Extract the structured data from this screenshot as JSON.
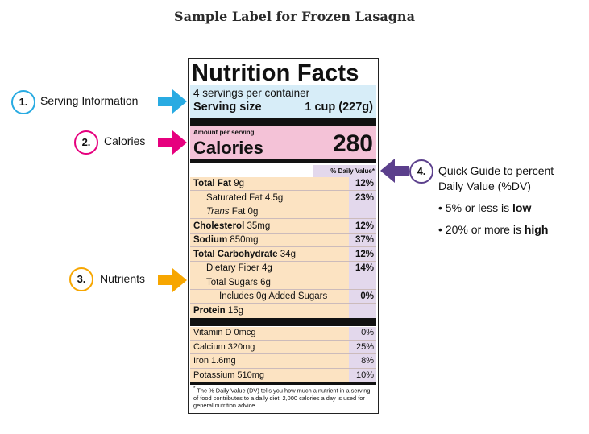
{
  "page_title": "Sample Label for Frozen Lasagna",
  "label": {
    "title": "Nutrition Facts",
    "servings_per_container": "4 servings per container",
    "serving_size_label": "Serving size",
    "serving_size_value": "1 cup (227g)",
    "amount_per_serving": "Amount per serving",
    "calories_label": "Calories",
    "calories_value": "280",
    "dv_header": "% Daily Value*",
    "nutrients": [
      {
        "name": "Total Fat",
        "amount": "9g",
        "dv": "12%"
      },
      {
        "name": "Saturated Fat 4.5g",
        "amount": "",
        "dv": "23%"
      },
      {
        "name": "Trans",
        "amount": "Fat 0g",
        "dv": ""
      },
      {
        "name": "Cholesterol",
        "amount": "35mg",
        "dv": "12%"
      },
      {
        "name": "Sodium",
        "amount": "850mg",
        "dv": "37%"
      },
      {
        "name": "Total Carbohydrate",
        "amount": "34g",
        "dv": "12%"
      },
      {
        "name": "Dietary Fiber 4g",
        "amount": "",
        "dv": "14%"
      },
      {
        "name": "Total Sugars 6g",
        "amount": "",
        "dv": ""
      },
      {
        "name": "Includes 0g Added Sugars",
        "amount": "",
        "dv": "0%"
      },
      {
        "name": "Protein",
        "amount": "15g",
        "dv": ""
      }
    ],
    "vitamins": [
      {
        "name": "Vitamin D 0mcg",
        "dv": "0%"
      },
      {
        "name": "Calcium 320mg",
        "dv": "25%"
      },
      {
        "name": "Iron 1.6mg",
        "dv": "8%"
      },
      {
        "name": "Potassium 510mg",
        "dv": "10%"
      }
    ],
    "footnote_mark": "*",
    "footnote": "The % Daily Value (DV) tells you how much a nutrient in a serving of food contributes to a daily diet. 2,000 calories a day is used for general nutrition advice."
  },
  "callouts": [
    {
      "number": "1.",
      "text": "Serving Information",
      "color": "#29abe2"
    },
    {
      "number": "2.",
      "text": "Calories",
      "color": "#e6007e"
    },
    {
      "number": "3.",
      "text": "Nutrients",
      "color": "#f7a600"
    },
    {
      "number": "4.",
      "text_line1": "Quick Guide to percent",
      "text_line2": "Daily Value (%DV)",
      "color": "#5b3f8c"
    }
  ],
  "guide": {
    "b1_prefix": "5% or less is ",
    "b1_bold": "low",
    "b2_prefix": "20% or more is ",
    "b2_bold": "high"
  },
  "colors": {
    "serving_bg": "#d7edf8",
    "calories_bg": "#f4c2d7",
    "nutrients_bg": "#fce3c2",
    "dv_bg": "#e3d8ec"
  }
}
